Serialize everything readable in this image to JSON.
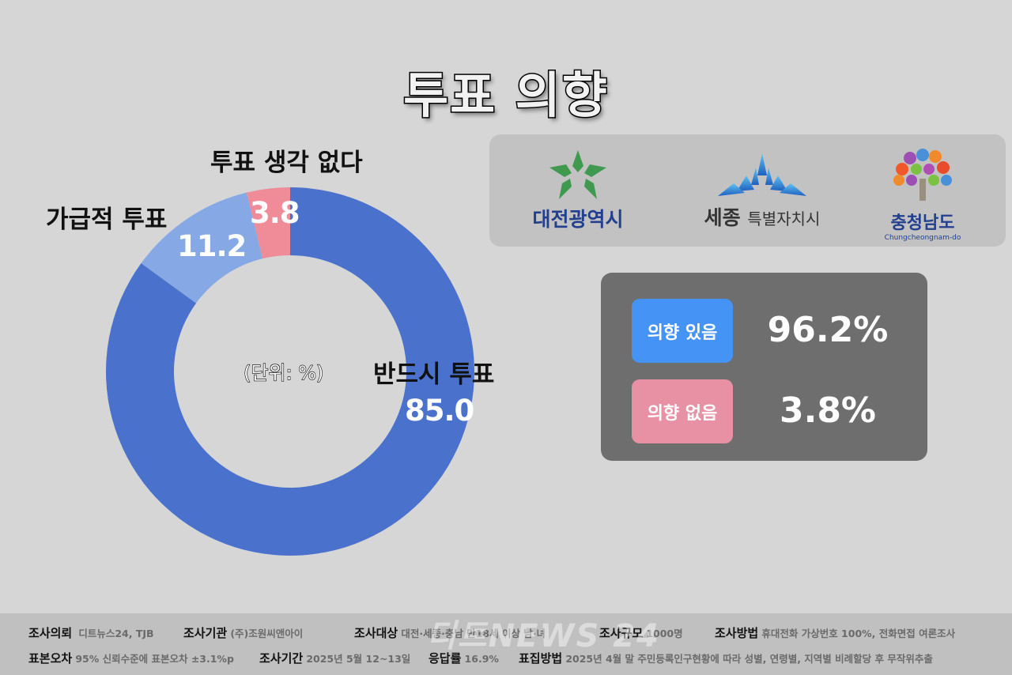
{
  "title": "투표 의향",
  "chart_data": {
    "type": "pie",
    "variant": "donut",
    "title": "투표 의향",
    "unit_note": "(단위: %)",
    "categories": [
      "반드시 투표",
      "가급적 투표",
      "투표 생각 없다"
    ],
    "values": [
      85.0,
      11.2,
      3.8
    ],
    "colors": [
      "#4a72cc",
      "#86a9e6",
      "#f08c98"
    ],
    "start_angle": "12 o'clock",
    "direction": "clockwise"
  },
  "chart_labels": {
    "must": {
      "label": "반드시 투표",
      "value": "85.0"
    },
    "likely": {
      "label": "가급적 투표",
      "value": "11.2"
    },
    "none": {
      "label": "투표 생각 없다",
      "value": "3.8"
    },
    "unit": "(단위: %)"
  },
  "logos": {
    "daejeon": {
      "text": "대전광역시",
      "icon": "daejeon-star-emblem"
    },
    "sejong": {
      "text_big": "세종",
      "text_small": "특별자치시",
      "icon": "sejong-mountain-emblem"
    },
    "chungnam": {
      "text": "충청남도",
      "sub": "Chungcheongnam-do",
      "icon": "chungnam-tree-emblem"
    }
  },
  "summary": {
    "yes": {
      "label": "의향 있음",
      "value": "96.2%",
      "color": "#4493f5"
    },
    "no": {
      "label": "의향 없음",
      "value": "3.8%",
      "color": "#e891a5"
    }
  },
  "footer": {
    "row1": [
      {
        "key": "조사의뢰",
        "value": "디트뉴스24, TJB"
      },
      {
        "key": "조사기관",
        "value": "(주)조원씨앤아이"
      },
      {
        "key": "조사대상",
        "value": "대전·세종·충남 만18세 이상 남·녀"
      },
      {
        "key": "조사규모",
        "value": "1000명"
      },
      {
        "key": "조사방법",
        "value": "휴대전화 가상번호 100%, 전화면접 여론조사"
      }
    ],
    "row2": [
      {
        "key": "표본오차",
        "value": "95% 신뢰수준에 표본오차 ±3.1%p"
      },
      {
        "key": "조사기간",
        "value": "2025년 5월 12~13일"
      },
      {
        "key": "응답률",
        "value": "16.9%"
      },
      {
        "key": "표집방법",
        "value": "2025년 4월 말 주민등록인구현황에 따라 성별, 연령별, 지역별 비례할당 후 무작위추출"
      }
    ],
    "watermark": "디트NEWS 24"
  }
}
